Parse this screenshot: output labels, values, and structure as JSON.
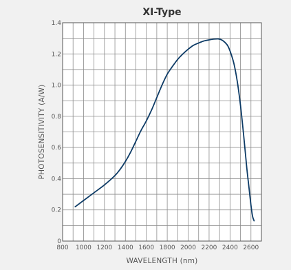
{
  "chart_data": {
    "type": "line",
    "title": "XI-Type",
    "xlabel": "WAVELENGTH (nm)",
    "ylabel": "PHOTOSENSITIVITY (A/W)",
    "xlim": [
      800,
      2700
    ],
    "ylim": [
      0,
      1.4
    ],
    "x_ticks": [
      800,
      1000,
      1200,
      1400,
      1600,
      1800,
      2000,
      2200,
      2400,
      2600
    ],
    "x_tick_labels": [
      "800",
      "1000",
      "1200",
      "1400",
      "1600",
      "1800",
      "2000",
      "2200",
      "2400",
      "2600"
    ],
    "y_ticks": [
      0,
      0.2,
      0.4,
      0.6,
      0.8,
      1.0,
      1.2,
      1.4
    ],
    "y_tick_labels": [
      "0",
      "0.2",
      "0.4",
      "0.6",
      "0.8",
      "1.0",
      "1.2",
      "1.4"
    ],
    "grid": true,
    "grid_x_step": 100,
    "grid_y_step": 0.1,
    "line_color": "#0d3b66",
    "grid_color": "#8c8c8c",
    "series": [
      {
        "x": [
          920,
          1000,
          1100,
          1200,
          1300,
          1350,
          1400,
          1450,
          1500,
          1550,
          1600,
          1650,
          1700,
          1750,
          1800,
          1850,
          1900,
          1950,
          2000,
          2050,
          2100,
          2150,
          2200,
          2250,
          2290,
          2320,
          2350,
          2380,
          2410,
          2440,
          2470,
          2500,
          2530,
          2560,
          2580,
          2600,
          2615,
          2630
        ],
        "y": [
          0.22,
          0.26,
          0.31,
          0.36,
          0.42,
          0.46,
          0.51,
          0.57,
          0.64,
          0.71,
          0.77,
          0.84,
          0.92,
          1.0,
          1.07,
          1.12,
          1.165,
          1.2,
          1.23,
          1.255,
          1.27,
          1.283,
          1.29,
          1.295,
          1.296,
          1.29,
          1.275,
          1.25,
          1.2,
          1.13,
          1.02,
          0.87,
          0.68,
          0.47,
          0.35,
          0.23,
          0.16,
          0.13
        ]
      }
    ]
  }
}
